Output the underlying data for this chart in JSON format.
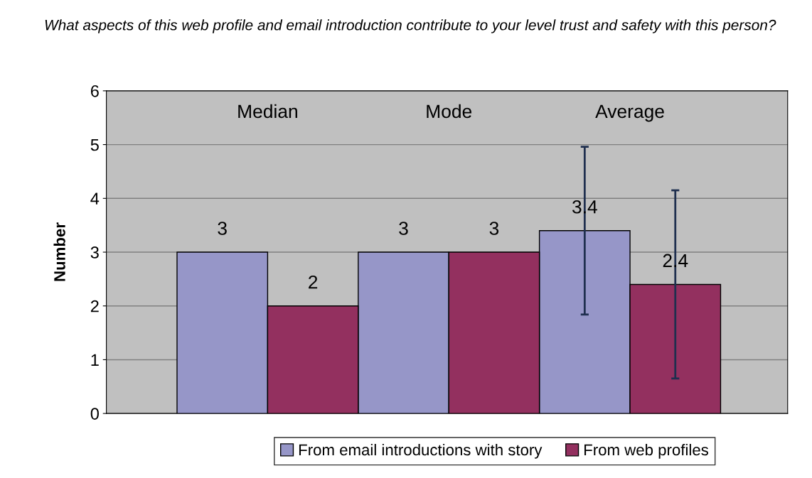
{
  "chart_data": {
    "type": "bar",
    "title": "What aspects of this web profile and email introduction contribute to your level trust and safety with this person?",
    "ylabel": "Number",
    "categories": [
      "Median",
      "Mode",
      "Average"
    ],
    "series": [
      {
        "name": "From email introductions with story",
        "color": "#9696c8",
        "values": [
          3,
          3,
          3.4
        ],
        "errors": [
          null,
          null,
          1.56
        ]
      },
      {
        "name": "From web profiles",
        "color": "#93305f",
        "values": [
          2,
          3,
          2.4
        ],
        "errors": [
          null,
          null,
          1.75
        ]
      }
    ],
    "ylim": [
      0,
      6
    ],
    "yticks": [
      0,
      1,
      2,
      3,
      4,
      5,
      6
    ],
    "grid": "y",
    "legend": "bottom",
    "data_labels": true
  }
}
